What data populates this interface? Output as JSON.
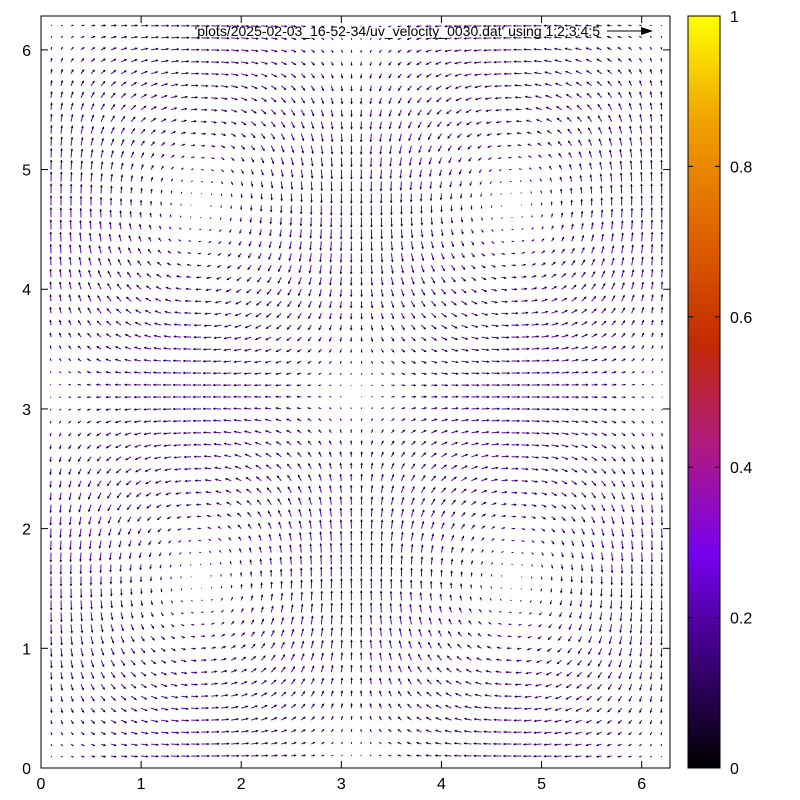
{
  "chart_data": {
    "type": "vector-field",
    "legend": {
      "label": "'plots/2025-02-03_16-52-34/uv_velocity_0030.dat' using 1:2:3:4:5"
    },
    "x_ticks": [
      "0",
      "1",
      "2",
      "3",
      "4",
      "5",
      "6"
    ],
    "y_ticks": [
      "0",
      "1",
      "2",
      "3",
      "4",
      "5",
      "6"
    ],
    "xlim": [
      0,
      6.283
    ],
    "ylim": [
      0,
      6.283
    ],
    "grid": false,
    "field": {
      "u": "sin(x)*cos(y)",
      "v": "-cos(x)*sin(y)",
      "x_range": [
        0.1,
        6.2
      ],
      "y_range": [
        0.1,
        6.2
      ],
      "n_points_per_axis": 62
    },
    "colorbar": {
      "range": [
        0,
        1
      ],
      "ticks": [
        "0",
        "0.2",
        "0.4",
        "0.6",
        "0.8",
        "1"
      ],
      "palette": [
        "#000000",
        "#3a0078",
        "#7700ee",
        "#b01a80",
        "#c42c00",
        "#e06400",
        "#f0a000",
        "#ffff00"
      ]
    },
    "arrow_color": "#5a00b8"
  }
}
